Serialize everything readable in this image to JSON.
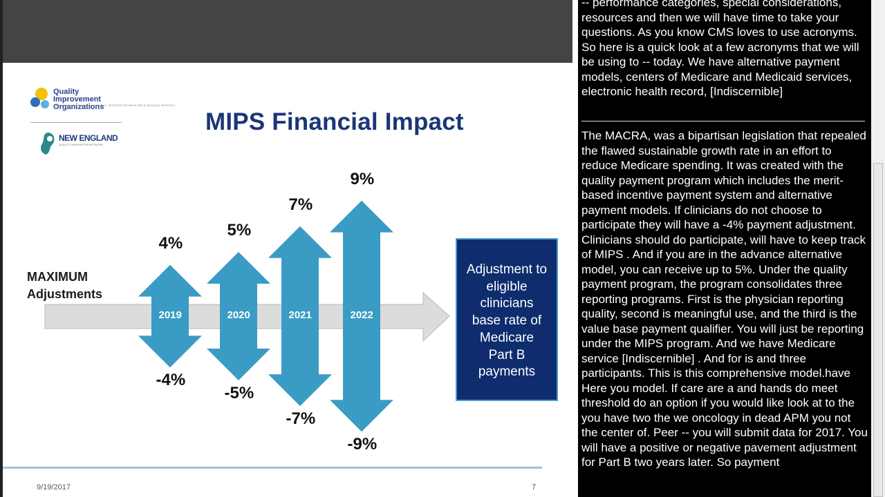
{
  "slide": {
    "title": "MIPS Financial Impact",
    "logo1_name": "Quality Improvement Organizations",
    "logo1_tagline": "Sharing Knowledge. Improving Health Care. CENTERS FOR MEDICARE & MEDICAID SERVICES",
    "logo2_name": "NEW ENGLAND",
    "logo2_tagline": "QUALITY INNOVATION NETWORK",
    "max_label_line1": "MAXIMUM",
    "max_label_line2": "Adjustments",
    "box_text_lines": [
      "Adjustment to",
      "eligible",
      "clinicians",
      "base rate of",
      "Medicare",
      "Part B",
      "payments"
    ],
    "date": "9/19/2017",
    "page_number": "7",
    "colors": {
      "title": "#1a3677",
      "arrow": "#3a9cc4",
      "box": "#0e2c6e",
      "band": "#dcdcdc"
    }
  },
  "chart_data": {
    "type": "bar",
    "categories": [
      "2019",
      "2020",
      "2021",
      "2022"
    ],
    "series": [
      {
        "values": [
          4,
          5,
          7,
          9
        ]
      },
      {
        "values": [
          -4,
          -5,
          -7,
          -9
        ]
      }
    ],
    "top_labels": [
      "4%",
      "5%",
      "7%",
      "9%"
    ],
    "bottom_labels": [
      "-4%",
      "-5%",
      "-7%",
      "-9%"
    ],
    "ylim": [
      -9,
      9
    ]
  },
  "captions": {
    "block1": "-- performance categories, special considerations, resources and then we will have time to take your questions. As you know CMS loves to use acronyms. So here is a quick look at a few acronyms that we will be using to -- today. We have alternative payment models, centers of Medicare and Medicaid services, electronic health record, [Indiscernible]",
    "block2": "The MACRA, was a bipartisan legislation that repealed the flawed sustainable growth rate in an effort to reduce Medicare spending. It was created with the quality payment program which includes the merit-based incentive payment system and alternative payment models. If clinicians do not choose to participate they will have a -4% payment adjustment. Clinicians should do participate, will have to keep track of MIPS . And if you are in the advance alternative model, you can receive up to 5%. Under the quality payment program, the program consolidates three reporting programs. First is the physician reporting quality, second is meaningful use, and the third is the value base payment qualifier. You will just be reporting under the MIPS program. And we have Medicare service [Indiscernible] . And for is and three participants. This is this comprehensive model.have Here you model. If care are a and hands do meet threshold do an option if you would like look at to the you have two the we oncology in dead APM you not the center of. Peer -- you will submit data for 2017. You will have a positive or negative pavement adjustment for Part B two years later. So payment"
  }
}
